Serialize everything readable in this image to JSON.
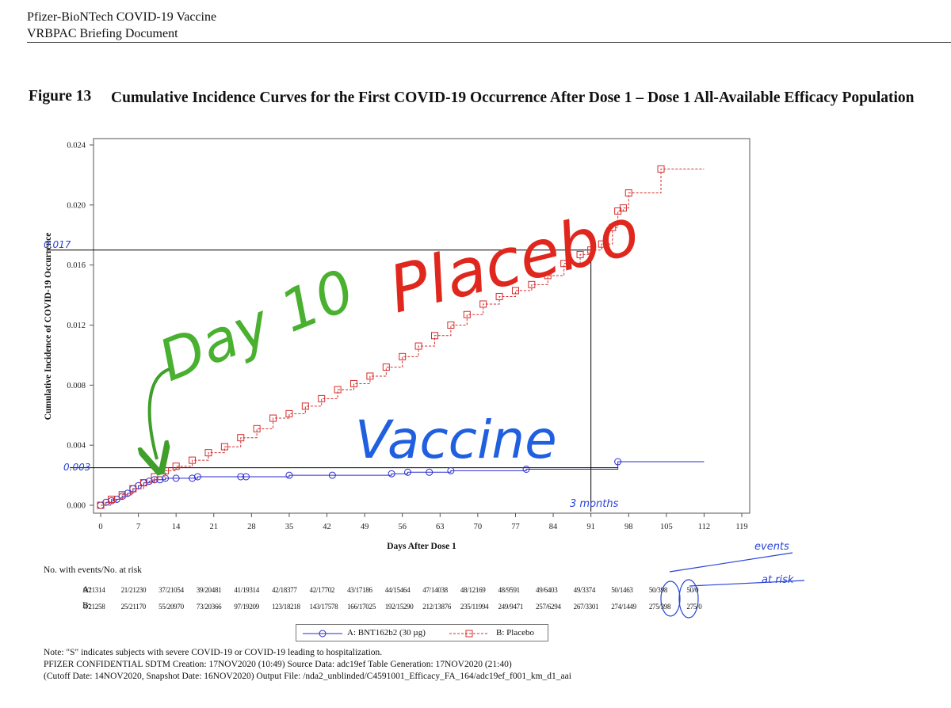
{
  "header": {
    "line1": "Pfizer-BioNTech COVID-19 Vaccine",
    "line2": "VRBPAC Briefing Document"
  },
  "figure": {
    "number": "Figure 13",
    "title": "Cumulative Incidence Curves for the First COVID-19 Occurrence After Dose 1 – Dose 1 All-Available Efficacy Population"
  },
  "chart_data": {
    "type": "line",
    "title": "",
    "xlabel": "Days After Dose 1",
    "ylabel": "Cumulative Incidence of COVID-19 Occurrence",
    "xlim": [
      0,
      119
    ],
    "ylim": [
      0,
      0.024
    ],
    "x_ticks": [
      0,
      7,
      14,
      21,
      28,
      35,
      42,
      49,
      56,
      63,
      70,
      77,
      84,
      91,
      98,
      105,
      112,
      119
    ],
    "y_ticks": [
      "0.000",
      "0.004",
      "0.008",
      "0.012",
      "0.016",
      "0.020",
      "0.024"
    ],
    "grid": false,
    "legend_position": "bottom-center",
    "series": [
      {
        "name": "A: BNT162b2 (30 µg)",
        "color": "#2b2bcf",
        "marker": "circle",
        "line_style": "solid",
        "x": [
          0,
          1,
          2,
          3,
          4,
          5,
          6,
          7,
          8,
          9,
          10,
          11,
          12,
          14,
          17,
          18,
          26,
          27,
          35,
          43,
          54,
          57,
          61,
          65,
          79,
          96,
          112
        ],
        "y": [
          0,
          0.0002,
          0.0003,
          0.0004,
          0.0006,
          0.0008,
          0.0011,
          0.0013,
          0.0015,
          0.0016,
          0.0017,
          0.0017,
          0.0018,
          0.0018,
          0.0018,
          0.0019,
          0.0019,
          0.0019,
          0.002,
          0.002,
          0.0021,
          0.0022,
          0.0022,
          0.0023,
          0.0024,
          0.0029,
          0.0029
        ]
      },
      {
        "name": "B: Placebo",
        "color": "#d62b2b",
        "marker": "square",
        "line_style": "dashed",
        "x": [
          0,
          2,
          4,
          6,
          8,
          10,
          12,
          14,
          17,
          20,
          23,
          26,
          29,
          32,
          35,
          38,
          41,
          44,
          47,
          50,
          53,
          56,
          59,
          62,
          65,
          68,
          71,
          74,
          77,
          80,
          83,
          86,
          89,
          91,
          93,
          95,
          96,
          97,
          98,
          104,
          112
        ],
        "y": [
          0,
          0.0004,
          0.0007,
          0.0011,
          0.0015,
          0.0019,
          0.0023,
          0.0026,
          0.003,
          0.0035,
          0.0039,
          0.0045,
          0.0051,
          0.0058,
          0.0061,
          0.0066,
          0.0071,
          0.0077,
          0.0081,
          0.0086,
          0.0092,
          0.0099,
          0.0106,
          0.0113,
          0.012,
          0.0127,
          0.0134,
          0.0139,
          0.0143,
          0.0147,
          0.0153,
          0.0161,
          0.0167,
          0.017,
          0.0174,
          0.0185,
          0.0196,
          0.0198,
          0.0208,
          0.0224,
          0.0224
        ]
      }
    ],
    "annotations": {
      "placebo_label": "Placebo",
      "vaccine_label": "Vaccine",
      "day_label": "Day 10",
      "y_high_label": "0.017",
      "y_low_label": "0.003",
      "months_label": "3 months",
      "events_label": "events",
      "at_risk_label": "at risk"
    }
  },
  "risk_table": {
    "title": "No. with events/No. at risk",
    "arms": [
      {
        "label": "A:",
        "values": [
          "0/21314",
          "21/21230",
          "37/21054",
          "39/20481",
          "41/19314",
          "42/18377",
          "42/17702",
          "43/17186",
          "44/15464",
          "47/14038",
          "48/12169",
          "48/9591",
          "49/6403",
          "49/3374",
          "50/1463",
          "50/398",
          "50/0"
        ]
      },
      {
        "label": "B:",
        "values": [
          "0/21258",
          "25/21170",
          "55/20970",
          "73/20366",
          "97/19209",
          "123/18218",
          "143/17578",
          "166/17025",
          "192/15290",
          "212/13876",
          "235/11994",
          "249/9471",
          "257/6294",
          "267/3301",
          "274/1449",
          "275/398",
          "275/0"
        ]
      }
    ]
  },
  "legend": {
    "a_label": "A: BNT162b2 (30 µg)",
    "b_label": "B: Placebo"
  },
  "notes": {
    "line1": "Note: \"S\" indicates subjects with severe COVID-19 or COVID-19 leading to hospitalization.",
    "line2": "PFIZER CONFIDENTIAL  SDTM Creation: 17NOV2020 (10:49)  Source Data: adc19ef  Table Generation: 17NOV2020 (21:40)",
    "line3": "(Cutoff Date: 14NOV2020, Snapshot Date: 16NOV2020) Output File:  /nda2_unblinded/C4591001_Efficacy_FA_164/adc19ef_f001_km_d1_aai"
  }
}
